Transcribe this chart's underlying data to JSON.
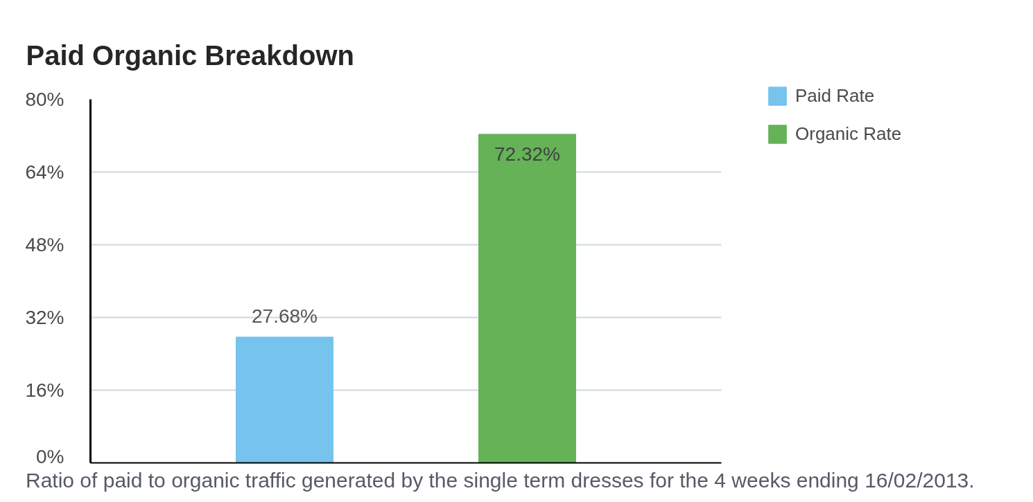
{
  "chart_data": {
    "type": "bar",
    "title": "Paid Organic Breakdown",
    "categories": [
      null,
      null
    ],
    "series": [
      {
        "name": "Paid Rate",
        "color": "#76c3ee",
        "values": [
          27.68,
          null
        ],
        "value_labels": [
          "27.68%",
          null
        ]
      },
      {
        "name": "Organic Rate",
        "color": "#65b257",
        "values": [
          null,
          72.32
        ],
        "value_labels": [
          null,
          "72.32%"
        ]
      }
    ],
    "ylim": [
      0,
      80
    ],
    "yticks": [
      {
        "value": 0,
        "label": "0%"
      },
      {
        "value": 16,
        "label": "16%"
      },
      {
        "value": 32,
        "label": "32%"
      },
      {
        "value": 48,
        "label": "48%"
      },
      {
        "value": 64,
        "label": "64%"
      },
      {
        "value": 80,
        "label": "80%"
      }
    ],
    "grid": "y",
    "legend": "top right",
    "annotations": [
      "Ratio of paid to organic traffic generated by the single term dresses for the 4 weeks ending 16/02/2013."
    ]
  }
}
